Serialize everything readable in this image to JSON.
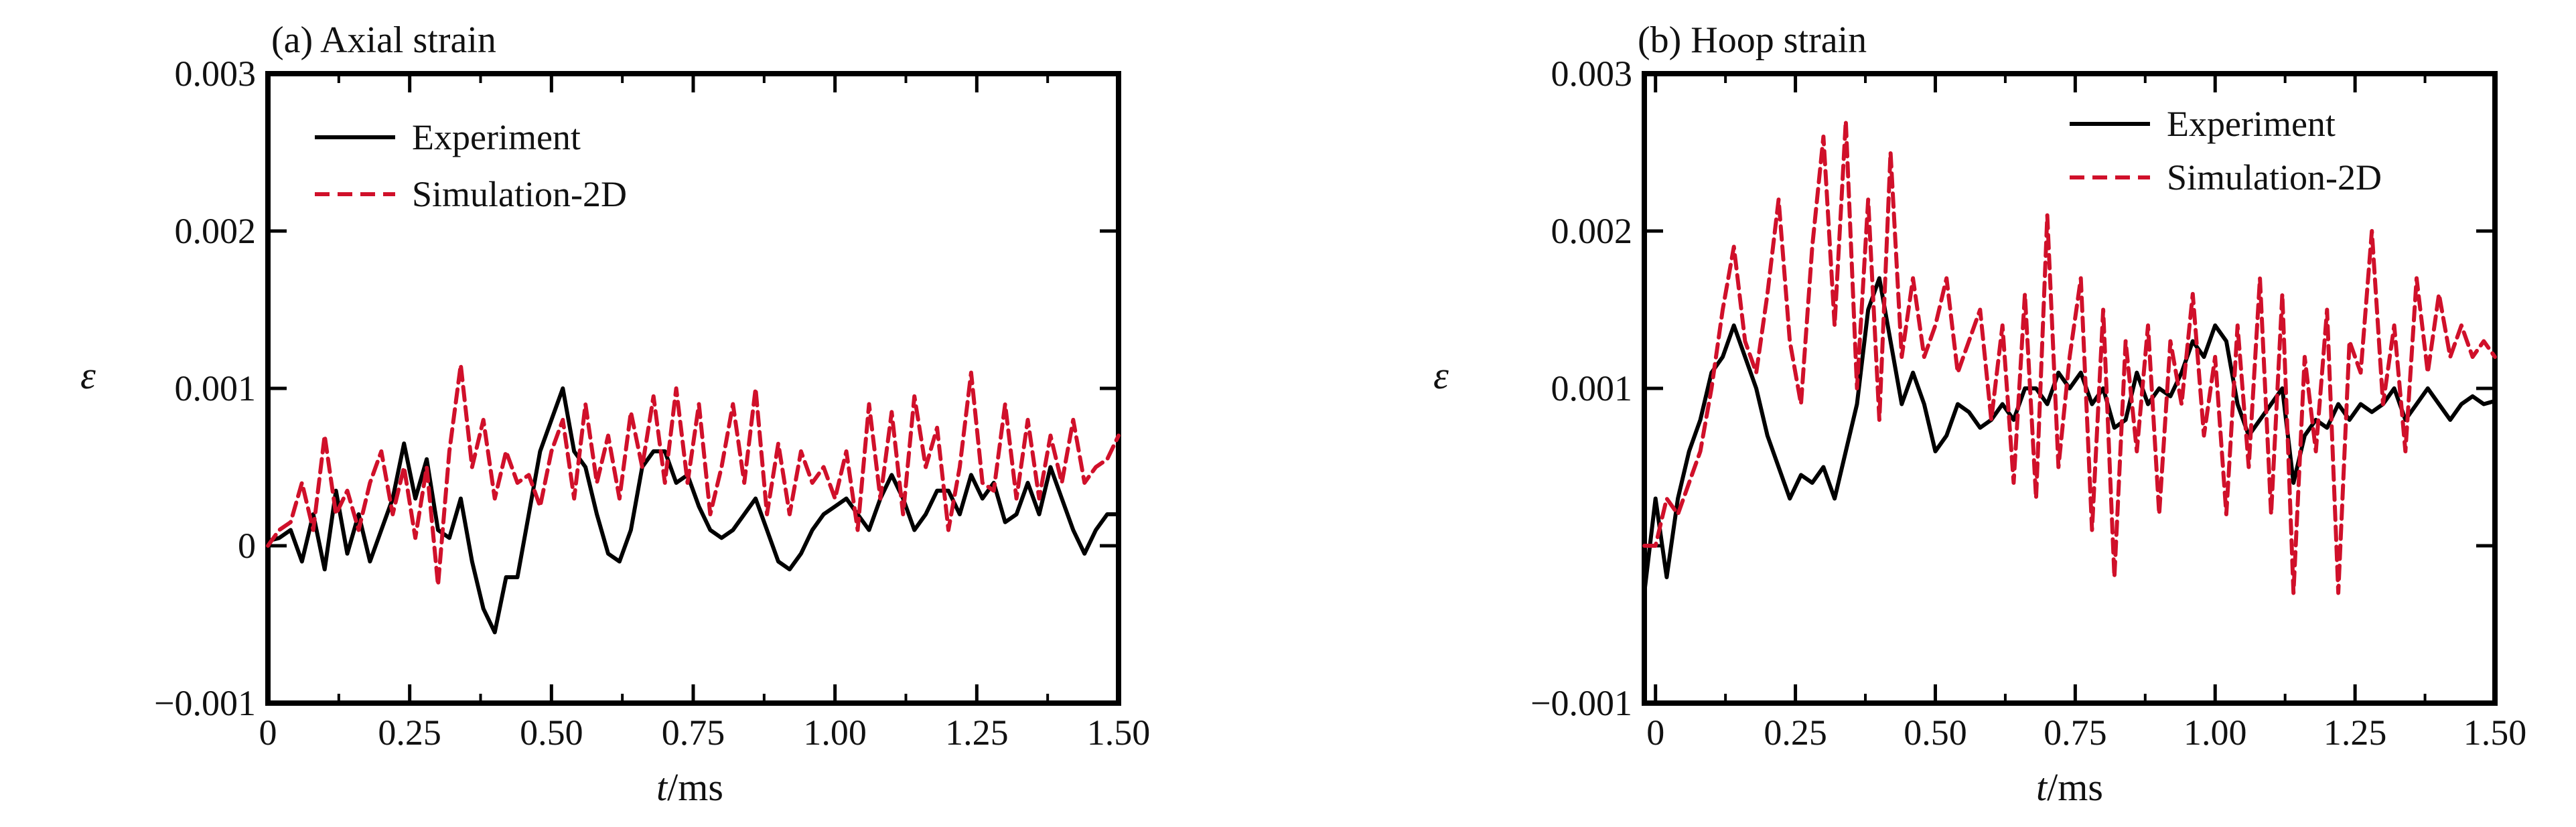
{
  "chart_data": [
    {
      "type": "line",
      "title": "(a) Axial strain",
      "xlabel_italic": "t",
      "xlabel_unit": "/ms",
      "ylabel": "ε",
      "xlim": [
        0,
        1.5
      ],
      "ylim": [
        -0.001,
        0.003
      ],
      "x_ticks": [
        "0",
        "0.25",
        "0.50",
        "0.75",
        "1.00",
        "1.25",
        "1.50"
      ],
      "y_ticks": [
        "−0.001",
        "0",
        "0.001",
        "0.002",
        "0.003"
      ],
      "y_tick_values": [
        -0.001,
        0,
        0.001,
        0.002,
        0.003
      ],
      "legend_position": "top-left",
      "grid": false,
      "series": [
        {
          "name": "Experiment",
          "color": "#000000",
          "style": "solid",
          "x": [
            0,
            0.02,
            0.04,
            0.06,
            0.08,
            0.1,
            0.12,
            0.14,
            0.16,
            0.18,
            0.2,
            0.22,
            0.24,
            0.26,
            0.28,
            0.3,
            0.32,
            0.34,
            0.36,
            0.38,
            0.4,
            0.42,
            0.44,
            0.46,
            0.48,
            0.5,
            0.52,
            0.54,
            0.56,
            0.58,
            0.6,
            0.62,
            0.64,
            0.66,
            0.68,
            0.7,
            0.72,
            0.74,
            0.76,
            0.78,
            0.8,
            0.82,
            0.84,
            0.86,
            0.88,
            0.9,
            0.92,
            0.94,
            0.96,
            0.98,
            1.0,
            1.02,
            1.04,
            1.06,
            1.08,
            1.1,
            1.12,
            1.14,
            1.16,
            1.18,
            1.2,
            1.22,
            1.24,
            1.26,
            1.28,
            1.3,
            1.32,
            1.34,
            1.36,
            1.38,
            1.4,
            1.42,
            1.44,
            1.46,
            1.48,
            1.5
          ],
          "values": [
            3e-05,
            5e-05,
            0.0001,
            -0.0001,
            0.0002,
            -0.00015,
            0.00035,
            -5e-05,
            0.0002,
            -0.0001,
            0.0001,
            0.0003,
            0.00065,
            0.0003,
            0.00055,
            0.0001,
            5e-05,
            0.0003,
            -0.0001,
            -0.0004,
            -0.00055,
            -0.0002,
            -0.0002,
            0.0002,
            0.0006,
            0.0008,
            0.001,
            0.0006,
            0.0005,
            0.0002,
            -5e-05,
            -0.0001,
            0.0001,
            0.0005,
            0.0006,
            0.0006,
            0.0004,
            0.00045,
            0.00025,
            0.0001,
            5e-05,
            0.0001,
            0.0002,
            0.0003,
            0.0001,
            -0.0001,
            -0.00015,
            -5e-05,
            0.0001,
            0.0002,
            0.00025,
            0.0003,
            0.0002,
            0.0001,
            0.0003,
            0.00045,
            0.0003,
            0.0001,
            0.0002,
            0.00035,
            0.00035,
            0.0002,
            0.00045,
            0.0003,
            0.0004,
            0.00015,
            0.0002,
            0.0004,
            0.0002,
            0.0005,
            0.0003,
            0.0001,
            -5e-05,
            0.0001,
            0.0002,
            0.0002
          ]
        },
        {
          "name": "Simulation-2D",
          "color": "#d0102a",
          "style": "dashed",
          "x": [
            0,
            0.02,
            0.04,
            0.06,
            0.08,
            0.1,
            0.12,
            0.14,
            0.16,
            0.18,
            0.2,
            0.22,
            0.24,
            0.26,
            0.28,
            0.3,
            0.32,
            0.34,
            0.36,
            0.38,
            0.4,
            0.42,
            0.44,
            0.46,
            0.48,
            0.5,
            0.52,
            0.54,
            0.56,
            0.58,
            0.6,
            0.62,
            0.64,
            0.66,
            0.68,
            0.7,
            0.72,
            0.74,
            0.76,
            0.78,
            0.8,
            0.82,
            0.84,
            0.86,
            0.88,
            0.9,
            0.92,
            0.94,
            0.96,
            0.98,
            1.0,
            1.02,
            1.04,
            1.06,
            1.08,
            1.1,
            1.12,
            1.14,
            1.16,
            1.18,
            1.2,
            1.22,
            1.24,
            1.26,
            1.28,
            1.3,
            1.32,
            1.34,
            1.36,
            1.38,
            1.4,
            1.42,
            1.44,
            1.46,
            1.48,
            1.5
          ],
          "values": [
            0.0,
            0.0001,
            0.00015,
            0.0004,
            0.0001,
            0.0007,
            0.0002,
            0.00035,
            0.0001,
            0.0004,
            0.0006,
            0.0002,
            0.0005,
            5e-05,
            0.0005,
            -0.00025,
            0.0006,
            0.00115,
            0.0005,
            0.0008,
            0.0003,
            0.0006,
            0.0004,
            0.00045,
            0.00025,
            0.0006,
            0.0008,
            0.0003,
            0.0009,
            0.0004,
            0.0007,
            0.0003,
            0.00085,
            0.0005,
            0.00095,
            0.0004,
            0.001,
            0.0004,
            0.0009,
            0.0002,
            0.0005,
            0.0009,
            0.0004,
            0.001,
            0.0002,
            0.00065,
            0.0002,
            0.0006,
            0.0004,
            0.0005,
            0.0003,
            0.0006,
            0.0001,
            0.0009,
            0.0003,
            0.00085,
            0.0002,
            0.00095,
            0.0005,
            0.00075,
            0.0001,
            0.0005,
            0.0011,
            0.0004,
            0.00035,
            0.0009,
            0.0003,
            0.0008,
            0.0003,
            0.0007,
            0.0004,
            0.0008,
            0.0004,
            0.0005,
            0.00055,
            0.0007
          ]
        }
      ]
    },
    {
      "type": "line",
      "title": "(b) Hoop strain",
      "xlabel_italic": "t",
      "xlabel_unit": "/ms",
      "ylabel": "ε",
      "xlim": [
        -0.02,
        1.5
      ],
      "ylim": [
        -0.001,
        0.003
      ],
      "x_ticks": [
        "0",
        "0.25",
        "0.50",
        "0.75",
        "1.00",
        "1.25",
        "1.50"
      ],
      "x_tick_values": [
        0,
        0.25,
        0.5,
        0.75,
        1.0,
        1.25,
        1.5
      ],
      "y_ticks": [
        "−0.001",
        "0.001",
        "0.002",
        "0.003"
      ],
      "y_tick_values": [
        -0.001,
        0.001,
        0.002,
        0.003
      ],
      "legend_position": "top-right",
      "grid": false,
      "series": [
        {
          "name": "Experiment",
          "color": "#000000",
          "style": "solid",
          "x": [
            -0.02,
            0.0,
            0.02,
            0.04,
            0.06,
            0.08,
            0.1,
            0.12,
            0.14,
            0.16,
            0.18,
            0.2,
            0.22,
            0.24,
            0.26,
            0.28,
            0.3,
            0.32,
            0.34,
            0.36,
            0.38,
            0.4,
            0.42,
            0.44,
            0.46,
            0.48,
            0.5,
            0.52,
            0.54,
            0.56,
            0.58,
            0.6,
            0.62,
            0.64,
            0.66,
            0.68,
            0.7,
            0.72,
            0.74,
            0.76,
            0.78,
            0.8,
            0.82,
            0.84,
            0.86,
            0.88,
            0.9,
            0.92,
            0.94,
            0.96,
            0.98,
            1.0,
            1.02,
            1.04,
            1.06,
            1.08,
            1.1,
            1.12,
            1.14,
            1.16,
            1.18,
            1.2,
            1.22,
            1.24,
            1.26,
            1.28,
            1.3,
            1.32,
            1.34,
            1.36,
            1.38,
            1.4,
            1.42,
            1.44,
            1.46,
            1.48,
            1.5
          ],
          "values": [
            -0.0003,
            0.0003,
            -0.0002,
            0.0003,
            0.0006,
            0.0008,
            0.0011,
            0.0012,
            0.0014,
            0.0012,
            0.001,
            0.0007,
            0.0005,
            0.0003,
            0.00045,
            0.0004,
            0.0005,
            0.0003,
            0.0006,
            0.0009,
            0.0015,
            0.0017,
            0.0013,
            0.0009,
            0.0011,
            0.0009,
            0.0006,
            0.0007,
            0.0009,
            0.00085,
            0.00075,
            0.0008,
            0.0009,
            0.0008,
            0.001,
            0.001,
            0.0009,
            0.0011,
            0.001,
            0.0011,
            0.0009,
            0.001,
            0.00075,
            0.0008,
            0.0011,
            0.0009,
            0.001,
            0.00095,
            0.0011,
            0.0013,
            0.0012,
            0.0014,
            0.0013,
            0.0009,
            0.0007,
            0.0008,
            0.0009,
            0.001,
            0.0004,
            0.0007,
            0.0008,
            0.00075,
            0.0009,
            0.0008,
            0.0009,
            0.00085,
            0.0009,
            0.001,
            0.0008,
            0.0009,
            0.001,
            0.0009,
            0.0008,
            0.0009,
            0.00095,
            0.0009,
            0.00092
          ]
        },
        {
          "name": "Simulation-2D",
          "color": "#d0102a",
          "style": "dashed",
          "x": [
            -0.02,
            0.0,
            0.02,
            0.04,
            0.06,
            0.08,
            0.1,
            0.12,
            0.14,
            0.16,
            0.18,
            0.2,
            0.22,
            0.24,
            0.26,
            0.28,
            0.3,
            0.32,
            0.34,
            0.36,
            0.38,
            0.4,
            0.42,
            0.44,
            0.46,
            0.48,
            0.5,
            0.52,
            0.54,
            0.56,
            0.58,
            0.6,
            0.62,
            0.64,
            0.66,
            0.68,
            0.7,
            0.72,
            0.74,
            0.76,
            0.78,
            0.8,
            0.82,
            0.84,
            0.86,
            0.88,
            0.9,
            0.92,
            0.94,
            0.96,
            0.98,
            1.0,
            1.02,
            1.04,
            1.06,
            1.08,
            1.1,
            1.12,
            1.14,
            1.16,
            1.18,
            1.2,
            1.22,
            1.24,
            1.26,
            1.28,
            1.3,
            1.32,
            1.34,
            1.36,
            1.38,
            1.4,
            1.42,
            1.44,
            1.46,
            1.48,
            1.5
          ],
          "values": [
            0.0,
            0.0,
            0.0003,
            0.0002,
            0.0004,
            0.0006,
            0.001,
            0.0015,
            0.0019,
            0.0013,
            0.0011,
            0.0016,
            0.0022,
            0.0013,
            0.0009,
            0.0019,
            0.0026,
            0.0014,
            0.0027,
            0.001,
            0.0022,
            0.0008,
            0.0025,
            0.0012,
            0.0017,
            0.0012,
            0.0014,
            0.0017,
            0.0011,
            0.0013,
            0.0015,
            0.0008,
            0.0014,
            0.0004,
            0.0016,
            0.0003,
            0.0021,
            0.0005,
            0.0012,
            0.0017,
            0.0001,
            0.0015,
            -0.0002,
            0.0013,
            0.0006,
            0.0014,
            0.0002,
            0.0013,
            0.0009,
            0.0016,
            0.0007,
            0.0012,
            0.0002,
            0.0014,
            0.0005,
            0.0017,
            0.0002,
            0.0016,
            -0.0003,
            0.0012,
            0.0006,
            0.0015,
            -0.0003,
            0.0013,
            0.0011,
            0.002,
            0.0009,
            0.0014,
            0.0006,
            0.0017,
            0.0011,
            0.0016,
            0.0012,
            0.0014,
            0.0012,
            0.0013,
            0.0012
          ]
        }
      ]
    }
  ]
}
